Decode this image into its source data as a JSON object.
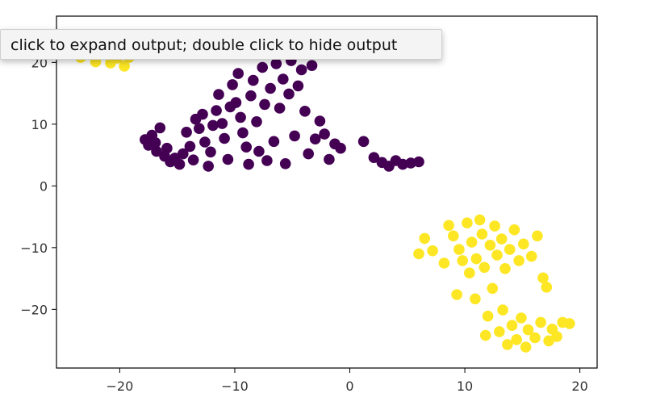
{
  "tooltip": {
    "text": "click to expand output; double click to hide output"
  },
  "chart_data": {
    "type": "scatter",
    "title": "",
    "xlabel": "",
    "ylabel": "",
    "xlim": [
      -25.5,
      21.5
    ],
    "ylim": [
      -29.5,
      27.5
    ],
    "xticks": [
      -20,
      -10,
      0,
      10,
      20
    ],
    "yticks": [
      20,
      10,
      0,
      -10,
      -20
    ],
    "xtick_labels": [
      "−20",
      "−10",
      "0",
      "10",
      "20"
    ],
    "ytick_labels": [
      "20",
      "10",
      "0",
      "−10",
      "−20"
    ],
    "grid": false,
    "colors": {
      "cluster_purple": "#440154",
      "cluster_yellow": "#fde725"
    },
    "series": [
      {
        "color": "#440154",
        "points": [
          [
            -17.8,
            7.5
          ],
          [
            -17.5,
            6.6
          ],
          [
            -17.2,
            8.2
          ],
          [
            -16.9,
            7.0
          ],
          [
            -16.8,
            5.6
          ],
          [
            -16.5,
            9.4
          ],
          [
            -16.1,
            4.8
          ],
          [
            -15.9,
            6.1
          ],
          [
            -15.6,
            3.9
          ],
          [
            -15.2,
            4.5
          ],
          [
            -14.8,
            3.5
          ],
          [
            -14.5,
            5.2
          ],
          [
            -14.2,
            8.7
          ],
          [
            -13.9,
            6.4
          ],
          [
            -13.6,
            4.2
          ],
          [
            -13.4,
            10.8
          ],
          [
            -13.1,
            9.3
          ],
          [
            -12.8,
            11.6
          ],
          [
            -12.6,
            7.1
          ],
          [
            -12.3,
            3.2
          ],
          [
            -12.1,
            5.5
          ],
          [
            -11.9,
            9.8
          ],
          [
            -11.6,
            12.2
          ],
          [
            -11.4,
            14.8
          ],
          [
            -11.1,
            10.1
          ],
          [
            -10.9,
            7.7
          ],
          [
            -10.6,
            4.3
          ],
          [
            -10.4,
            12.8
          ],
          [
            -10.2,
            16.4
          ],
          [
            -9.9,
            13.5
          ],
          [
            -9.7,
            18.2
          ],
          [
            -9.5,
            11.1
          ],
          [
            -9.3,
            8.6
          ],
          [
            -9.0,
            6.3
          ],
          [
            -8.8,
            3.5
          ],
          [
            -8.6,
            14.6
          ],
          [
            -8.4,
            17.1
          ],
          [
            -8.1,
            10.4
          ],
          [
            -7.9,
            5.6
          ],
          [
            -7.6,
            19.2
          ],
          [
            -7.4,
            13.2
          ],
          [
            -7.2,
            4.1
          ],
          [
            -6.9,
            15.8
          ],
          [
            -6.6,
            7.2
          ],
          [
            -6.4,
            19.8
          ],
          [
            -6.1,
            12.6
          ],
          [
            -5.8,
            17.3
          ],
          [
            -5.6,
            3.6
          ],
          [
            -5.3,
            14.9
          ],
          [
            -5.1,
            20.3
          ],
          [
            -4.8,
            8.1
          ],
          [
            -4.5,
            16.2
          ],
          [
            -4.2,
            18.8
          ],
          [
            -3.9,
            12.1
          ],
          [
            -3.6,
            5.2
          ],
          [
            -3.3,
            19.5
          ],
          [
            -3.0,
            7.6
          ],
          [
            -2.6,
            10.5
          ],
          [
            -2.2,
            8.4
          ],
          [
            -1.8,
            4.3
          ],
          [
            -1.3,
            6.8
          ],
          [
            -0.8,
            6.1
          ],
          [
            1.2,
            7.2
          ],
          [
            2.1,
            4.6
          ],
          [
            2.8,
            3.8
          ],
          [
            3.4,
            3.2
          ],
          [
            4.0,
            4.1
          ],
          [
            4.6,
            3.5
          ],
          [
            5.3,
            3.7
          ],
          [
            6.0,
            3.9
          ]
        ]
      },
      {
        "color": "#fde725",
        "points": [
          [
            -24.0,
            21.6
          ],
          [
            -23.4,
            20.8
          ],
          [
            -22.6,
            21.9
          ],
          [
            -22.1,
            20.1
          ],
          [
            -21.3,
            21.5
          ],
          [
            -20.8,
            19.9
          ],
          [
            -20.2,
            20.7
          ],
          [
            -19.6,
            19.4
          ],
          [
            -19.2,
            20.8
          ],
          [
            6.0,
            -11.0
          ],
          [
            6.5,
            -8.5
          ],
          [
            7.2,
            -10.5
          ],
          [
            8.2,
            -12.5
          ],
          [
            8.6,
            -6.4
          ],
          [
            9.0,
            -8.1
          ],
          [
            9.3,
            -17.6
          ],
          [
            9.5,
            -10.3
          ],
          [
            9.8,
            -12.1
          ],
          [
            10.2,
            -6.0
          ],
          [
            10.4,
            -14.1
          ],
          [
            10.6,
            -9.1
          ],
          [
            10.9,
            -18.3
          ],
          [
            11.0,
            -11.8
          ],
          [
            11.3,
            -5.5
          ],
          [
            11.5,
            -7.8
          ],
          [
            11.7,
            -13.2
          ],
          [
            11.8,
            -24.2
          ],
          [
            12.0,
            -21.1
          ],
          [
            12.2,
            -9.6
          ],
          [
            12.4,
            -16.6
          ],
          [
            12.6,
            -6.5
          ],
          [
            12.8,
            -11.2
          ],
          [
            13.0,
            -23.6
          ],
          [
            13.2,
            -8.6
          ],
          [
            13.3,
            -20.1
          ],
          [
            13.5,
            -13.4
          ],
          [
            13.7,
            -25.7
          ],
          [
            13.9,
            -10.3
          ],
          [
            14.1,
            -22.6
          ],
          [
            14.3,
            -7.1
          ],
          [
            14.5,
            -24.9
          ],
          [
            14.7,
            -12.1
          ],
          [
            14.9,
            -21.4
          ],
          [
            15.1,
            -9.4
          ],
          [
            15.3,
            -26.1
          ],
          [
            15.5,
            -23.3
          ],
          [
            15.8,
            -11.4
          ],
          [
            16.1,
            -24.6
          ],
          [
            16.3,
            -8.1
          ],
          [
            16.6,
            -22.1
          ],
          [
            16.8,
            -14.9
          ],
          [
            17.1,
            -16.4
          ],
          [
            17.3,
            -25.1
          ],
          [
            17.6,
            -23.2
          ],
          [
            18.0,
            -24.4
          ],
          [
            18.5,
            -22.1
          ],
          [
            19.1,
            -22.3
          ]
        ]
      }
    ]
  }
}
